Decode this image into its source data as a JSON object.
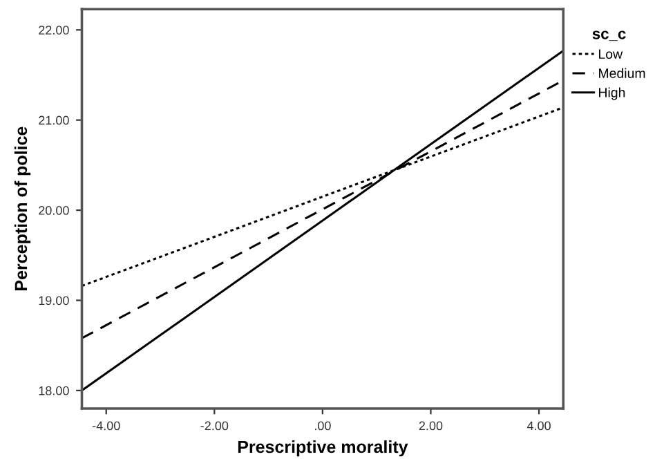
{
  "chart_data": {
    "type": "line",
    "xlabel": "Prescriptive morality",
    "ylabel": "Perception of police",
    "legend_title": "sc_c",
    "legend": "right",
    "x": [
      -4.45,
      4.45
    ],
    "series": [
      {
        "name": "Low",
        "color": "#000000",
        "line_style": "dotted",
        "values": [
          19.16,
          21.14
        ]
      },
      {
        "name": "Medium",
        "color": "#000000",
        "line_style": "dashed",
        "values": [
          18.58,
          21.44
        ]
      },
      {
        "name": "High",
        "color": "#000000",
        "line_style": "solid",
        "values": [
          18.0,
          21.77
        ]
      }
    ],
    "xlim": [
      -4.45,
      4.45
    ],
    "ylim": [
      17.8,
      22.23
    ],
    "xticks": [
      {
        "value": -4,
        "label": "-4.00"
      },
      {
        "value": -2,
        "label": "-2.00"
      },
      {
        "value": 0,
        "label": ".00"
      },
      {
        "value": 2,
        "label": "2.00"
      },
      {
        "value": 4,
        "label": "4.00"
      }
    ],
    "yticks": [
      {
        "value": 18,
        "label": "18.00"
      },
      {
        "value": 19,
        "label": "19.00"
      },
      {
        "value": 20,
        "label": "20.00"
      },
      {
        "value": 21,
        "label": "21.00"
      },
      {
        "value": 22,
        "label": "22.00"
      }
    ],
    "grid": false,
    "marker": "none"
  }
}
